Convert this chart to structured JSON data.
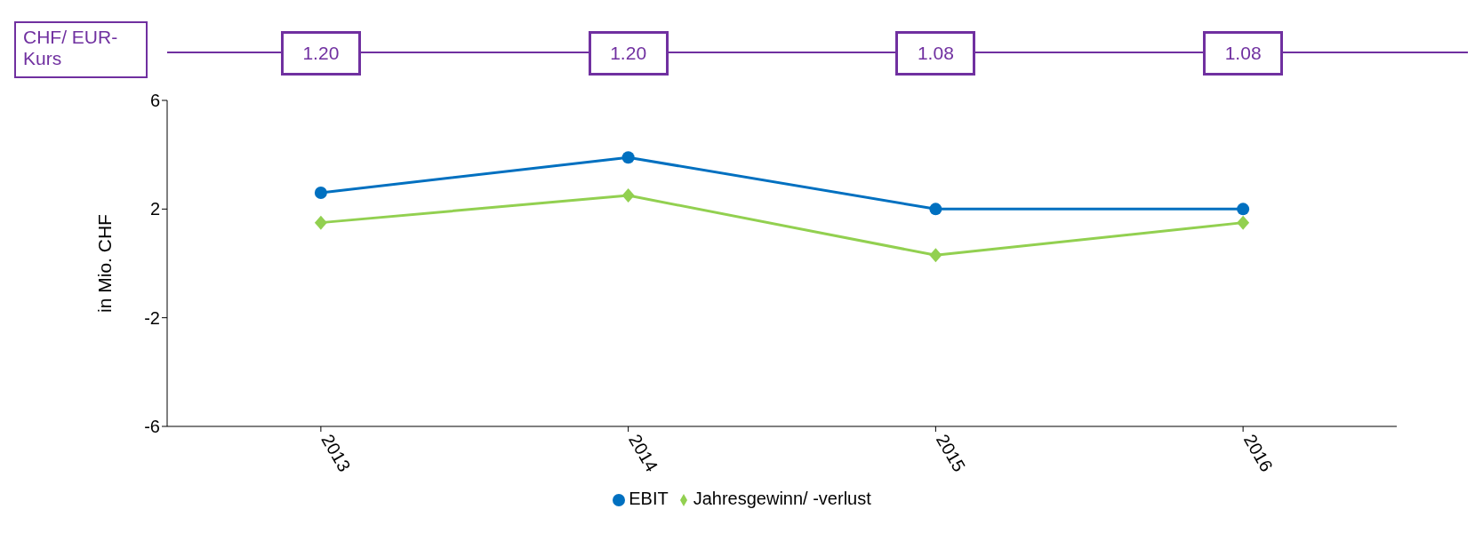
{
  "chart_data": {
    "type": "line",
    "ylabel": "in Mio. CHF",
    "categories": [
      "2013",
      "2014",
      "2015",
      "2016"
    ],
    "series": [
      {
        "name": "EBIT",
        "color": "#0070c0",
        "marker": "circle",
        "values": [
          2.6,
          3.9,
          2.0,
          2.0
        ]
      },
      {
        "name": "Jahresgewinn/ -verlust",
        "color": "#92d050",
        "marker": "diamond",
        "values": [
          1.5,
          2.5,
          0.3,
          1.5
        ]
      }
    ],
    "ylim": [
      -6,
      6
    ],
    "yticks": [
      -6,
      -2,
      2,
      6
    ],
    "legend": "bottom",
    "line_style": "solid",
    "annotations": [
      "CHF/ EUR-Kurs",
      "1.20",
      "1.20",
      "1.08",
      "1.08"
    ]
  }
}
